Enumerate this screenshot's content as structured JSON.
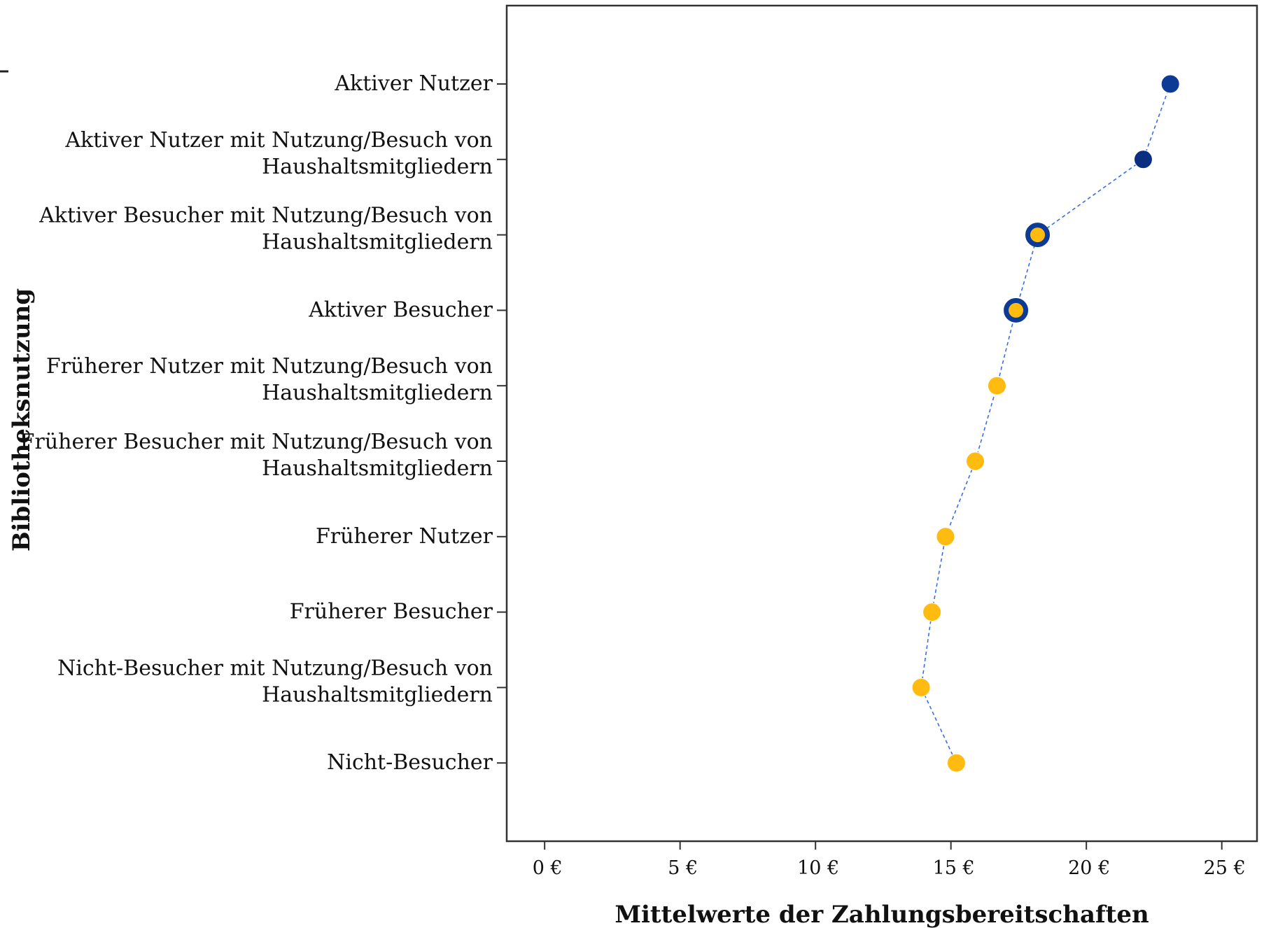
{
  "chart_data": {
    "type": "scatter",
    "orientation": "horizontal",
    "xlabel": "Mittelwerte der Zahlungsbereitschaften",
    "ylabel": "Bibliotheksnutzung",
    "xlim": [
      -1.4,
      26.3
    ],
    "xticks": [
      0,
      5,
      10,
      15,
      20,
      25
    ],
    "xtick_labels": [
      "0 €",
      "5 €",
      "10 €",
      "15 €",
      "20 €",
      "25 €"
    ],
    "connector": "dashed",
    "colors": {
      "navy": "#0c3a94",
      "dark_navy": "#0b2f80",
      "gold": "#ffbb0f",
      "line": "#3a6fe0",
      "axis": "#333333"
    },
    "points": [
      {
        "category_lines": [
          "Aktiver Nutzer"
        ],
        "value": 23.1,
        "style": "navy"
      },
      {
        "category_lines": [
          "Aktiver Nutzer mit Nutzung/Besuch von",
          "Haushaltsmitgliedern"
        ],
        "value": 22.1,
        "style": "dark-navy"
      },
      {
        "category_lines": [
          "Aktiver Besucher mit Nutzung/Besuch von",
          "Haushaltsmitgliedern"
        ],
        "value": 18.2,
        "style": "ring"
      },
      {
        "category_lines": [
          "Aktiver Besucher"
        ],
        "value": 17.4,
        "style": "ring"
      },
      {
        "category_lines": [
          "Früherer Nutzer mit Nutzung/Besuch von",
          "Haushaltsmitgliedern"
        ],
        "value": 16.7,
        "style": "gold"
      },
      {
        "category_lines": [
          "Früherer Besucher mit Nutzung/Besuch von",
          "Haushaltsmitgliedern"
        ],
        "value": 15.9,
        "style": "gold"
      },
      {
        "category_lines": [
          "Früherer Nutzer"
        ],
        "value": 14.8,
        "style": "gold"
      },
      {
        "category_lines": [
          "Früherer Besucher"
        ],
        "value": 14.3,
        "style": "gold"
      },
      {
        "category_lines": [
          "Nicht-Besucher mit Nutzung/Besuch von",
          "Haushaltsmitgliedern"
        ],
        "value": 13.9,
        "style": "gold"
      },
      {
        "category_lines": [
          "Nicht-Besucher"
        ],
        "value": 15.2,
        "style": "gold"
      }
    ]
  }
}
